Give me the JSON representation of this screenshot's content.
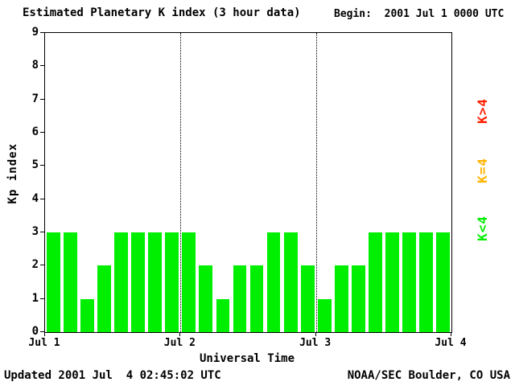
{
  "footer": {
    "updated": "Updated 2001 Jul  4 02:45:02 UTC",
    "credit": "NOAA/SEC Boulder, CO USA"
  },
  "chart_data": {
    "type": "bar",
    "title": "Estimated Planetary K index (3 hour data)",
    "begin_label": "Begin:  2001 Jul 1 0000 UTC",
    "xlabel": "Universal Time",
    "ylabel": "Kp index",
    "ylim": [
      0,
      9
    ],
    "y_ticks": [
      0,
      1,
      2,
      3,
      4,
      5,
      6,
      7,
      8,
      9
    ],
    "x_tick_labels": [
      "Jul 1",
      "Jul 2",
      "Jul 3",
      "Jul 4"
    ],
    "days": 3,
    "bars_per_day": 8,
    "interval_hours": 3,
    "values": [
      3,
      3,
      1,
      2,
      3,
      3,
      3,
      3,
      3,
      2,
      1,
      2,
      2,
      3,
      3,
      2,
      1,
      2,
      2,
      3,
      3,
      3,
      3,
      3
    ],
    "bar_color": "#00ee00",
    "grid": "dotted vertical lines at day boundaries",
    "legend_position": "right",
    "legend": [
      {
        "label": "K>4",
        "color": "#ff2000"
      },
      {
        "label": "K=4",
        "color": "#ffb400"
      },
      {
        "label": "K<4",
        "color": "#00ee00"
      }
    ]
  }
}
